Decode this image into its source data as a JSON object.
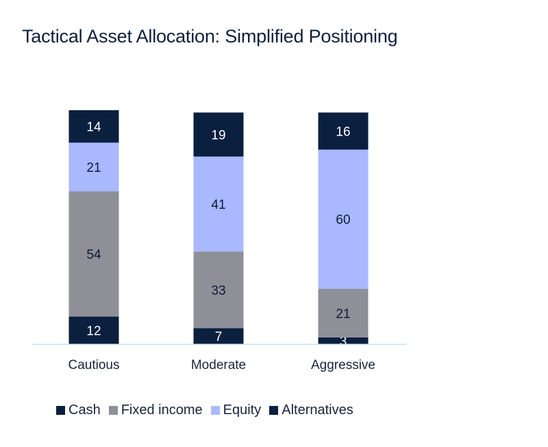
{
  "title": "Tactical Asset Allocation: Simplified Positioning",
  "chart_data": {
    "type": "bar",
    "stacked": true,
    "categories": [
      "Cautious",
      "Moderate",
      "Aggressive"
    ],
    "series": [
      {
        "name": "Cash",
        "color": "#0b1f3f",
        "values": [
          12,
          7,
          3
        ]
      },
      {
        "name": "Fixed income",
        "color": "#8f8f98",
        "values": [
          54,
          33,
          21
        ]
      },
      {
        "name": "Equity",
        "color": "#a9b8ff",
        "values": [
          21,
          41,
          60
        ]
      },
      {
        "name": "Alternatives",
        "color": "#0b1f3f",
        "values": [
          14,
          19,
          16
        ]
      }
    ],
    "ylim": [
      0,
      101
    ],
    "grid": false,
    "legend_position": "bottom"
  }
}
